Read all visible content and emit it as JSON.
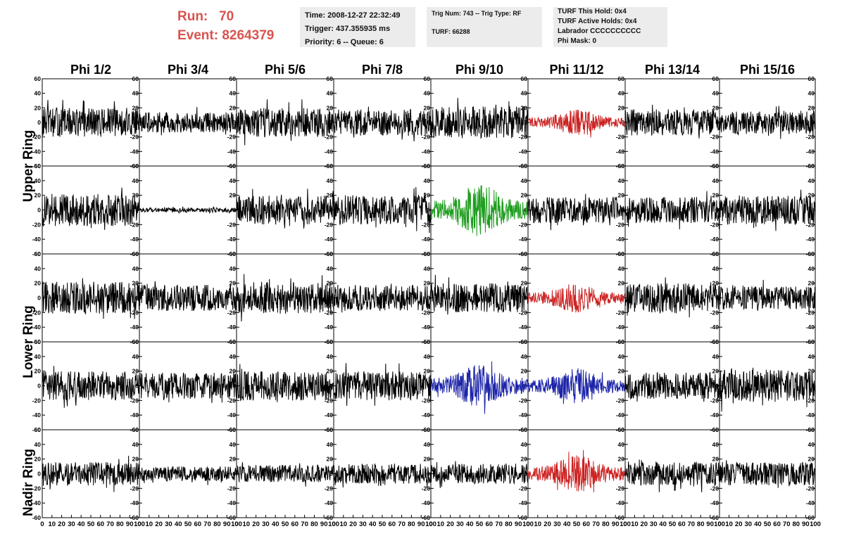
{
  "header": {
    "run_label": "Run:",
    "run_value": "70",
    "event_label": "Event:",
    "event_value": "8264379",
    "time": "Time: 2008-12-27 22:32:49",
    "trigger": "Trigger: 437.355935 ms",
    "priority": "Priority: 6 -- Queue: 6",
    "trig_num": "Trig Num: 743 -- Trig Type: RF",
    "turf": "TURF: 66288",
    "turf_this_hold": "TURF This Hold: 0x4",
    "turf_active_holds": "TURF Active Holds: 0x4",
    "labrador": "Labrador CCCCCCCCCC",
    "phi_mask": "Phi Mask: 0"
  },
  "chart_data": {
    "type": "line",
    "columns": [
      "Phi 1/2",
      "Phi 3/4",
      "Phi 5/6",
      "Phi 7/8",
      "Phi 9/10",
      "Phi 11/12",
      "Phi 13/14",
      "Phi 15/16"
    ],
    "row_labels": [
      "Upper Ring",
      "Lower Ring",
      "Nadir Ring"
    ],
    "xlim": [
      0,
      100
    ],
    "ylim": [
      -60,
      60
    ],
    "x_ticks": [
      "0",
      "10",
      "20",
      "30",
      "40",
      "50",
      "60",
      "70",
      "80",
      "90",
      "100"
    ],
    "y_ticks": [
      "60",
      "40",
      "20",
      "0",
      "-20",
      "-40",
      "-60"
    ],
    "colors": {
      "default": "#000000",
      "red": "#cc2222",
      "green": "#1f9e1f",
      "blue": "#1c24a8"
    },
    "waveforms": [
      {
        "row": 0,
        "col": 0,
        "amplitude": 20,
        "color": "default"
      },
      {
        "row": 0,
        "col": 1,
        "amplitude": 14,
        "color": "default"
      },
      {
        "row": 0,
        "col": 2,
        "amplitude": 20,
        "color": "default"
      },
      {
        "row": 0,
        "col": 3,
        "amplitude": 18,
        "color": "default"
      },
      {
        "row": 0,
        "col": 4,
        "amplitude": 22,
        "color": "default"
      },
      {
        "row": 0,
        "col": 5,
        "amplitude": 18,
        "color": "red",
        "envelope": "burst"
      },
      {
        "row": 0,
        "col": 6,
        "amplitude": 18,
        "color": "default"
      },
      {
        "row": 0,
        "col": 7,
        "amplitude": 16,
        "color": "default"
      },
      {
        "row": 1,
        "col": 0,
        "amplitude": 22,
        "color": "default"
      },
      {
        "row": 1,
        "col": 1,
        "amplitude": 3,
        "color": "default"
      },
      {
        "row": 1,
        "col": 2,
        "amplitude": 20,
        "color": "default"
      },
      {
        "row": 1,
        "col": 3,
        "amplitude": 20,
        "color": "default"
      },
      {
        "row": 1,
        "col": 4,
        "amplitude": 36,
        "color": "green",
        "envelope": "burst"
      },
      {
        "row": 1,
        "col": 5,
        "amplitude": 18,
        "color": "default"
      },
      {
        "row": 1,
        "col": 6,
        "amplitude": 18,
        "color": "default"
      },
      {
        "row": 1,
        "col": 7,
        "amplitude": 20,
        "color": "default"
      },
      {
        "row": 2,
        "col": 0,
        "amplitude": 22,
        "color": "default"
      },
      {
        "row": 2,
        "col": 1,
        "amplitude": 18,
        "color": "default"
      },
      {
        "row": 2,
        "col": 2,
        "amplitude": 22,
        "color": "default"
      },
      {
        "row": 2,
        "col": 3,
        "amplitude": 18,
        "color": "default"
      },
      {
        "row": 2,
        "col": 4,
        "amplitude": 20,
        "color": "default"
      },
      {
        "row": 2,
        "col": 5,
        "amplitude": 20,
        "color": "red",
        "envelope": "burst"
      },
      {
        "row": 2,
        "col": 6,
        "amplitude": 20,
        "color": "default"
      },
      {
        "row": 2,
        "col": 7,
        "amplitude": 16,
        "color": "default"
      },
      {
        "row": 3,
        "col": 0,
        "amplitude": 20,
        "color": "default"
      },
      {
        "row": 3,
        "col": 1,
        "amplitude": 18,
        "color": "default"
      },
      {
        "row": 3,
        "col": 2,
        "amplitude": 20,
        "color": "default"
      },
      {
        "row": 3,
        "col": 3,
        "amplitude": 20,
        "color": "default"
      },
      {
        "row": 3,
        "col": 4,
        "amplitude": 30,
        "color": "blue",
        "envelope": "burst"
      },
      {
        "row": 3,
        "col": 5,
        "amplitude": 24,
        "color": "blue",
        "envelope": "burst"
      },
      {
        "row": 3,
        "col": 6,
        "amplitude": 18,
        "color": "default"
      },
      {
        "row": 3,
        "col": 7,
        "amplitude": 22,
        "color": "default"
      },
      {
        "row": 4,
        "col": 0,
        "amplitude": 16,
        "color": "default"
      },
      {
        "row": 4,
        "col": 1,
        "amplitude": 10,
        "color": "default"
      },
      {
        "row": 4,
        "col": 2,
        "amplitude": 12,
        "color": "default"
      },
      {
        "row": 4,
        "col": 3,
        "amplitude": 14,
        "color": "default"
      },
      {
        "row": 4,
        "col": 4,
        "amplitude": 14,
        "color": "default"
      },
      {
        "row": 4,
        "col": 5,
        "amplitude": 26,
        "color": "red",
        "envelope": "burst"
      },
      {
        "row": 4,
        "col": 6,
        "amplitude": 16,
        "color": "default"
      },
      {
        "row": 4,
        "col": 7,
        "amplitude": 16,
        "color": "default"
      }
    ]
  }
}
